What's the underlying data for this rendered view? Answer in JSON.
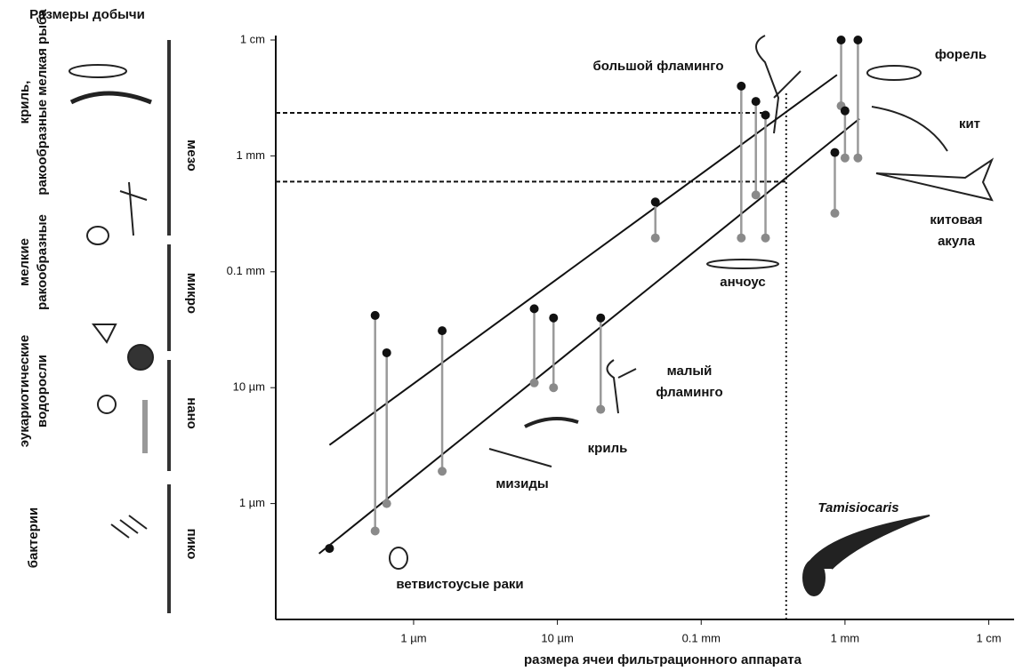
{
  "left_panel": {
    "title": "Размеры добычи",
    "prey_groups": [
      [
        "криль,",
        "ракообразные мелкая рыба"
      ],
      [
        "мелкие",
        "ракообразные"
      ],
      [
        "эукариотические",
        "водоросли"
      ],
      [
        "бактерии"
      ]
    ],
    "size_classes": [
      "мезо",
      "микро",
      "нано",
      "пико"
    ]
  },
  "chart_data": {
    "type": "range",
    "xlabel": "размера ячеи фильтрационного аппарата",
    "log_x": true,
    "log_y": true,
    "xlim": [
      0.11,
      15000
    ],
    "ylim": [
      0.1,
      10000
    ],
    "xticks": [
      {
        "value": 1,
        "label": "1 µm"
      },
      {
        "value": 10,
        "label": "10 µm"
      },
      {
        "value": 100,
        "label": "0.1 mm"
      },
      {
        "value": 1000,
        "label": "1 mm"
      },
      {
        "value": 10000,
        "label": "1 cm"
      }
    ],
    "yticks": [
      {
        "value": 1,
        "label": "1 µm"
      },
      {
        "value": 10,
        "label": "10 µm"
      },
      {
        "value": 100,
        "label": "0.1 mm"
      },
      {
        "value": 1000,
        "label": "1 mm"
      },
      {
        "value": 10000,
        "label": "1 cm"
      }
    ],
    "ranges": {
      "x": [
        0.26,
        0.54,
        0.65,
        1.58,
        6.9,
        9.4,
        20,
        48,
        190,
        240,
        280,
        850,
        940,
        1000,
        1230
      ],
      "top": [
        0.41,
        42,
        20,
        31,
        48,
        40,
        40,
        400,
        4000,
        2950,
        2250,
        1070,
        10000,
        2450,
        10000
      ],
      "bottom": [
        0.41,
        0.58,
        1.0,
        1.9,
        11,
        10,
        6.5,
        196,
        196,
        460,
        196,
        320,
        2700,
        960,
        960
      ],
      "top_color": "#111111",
      "bottom_color": "#8a8a8a",
      "line_color": "#9a9a9a"
    },
    "fit_lines": [
      {
        "x": [
          0.26,
          880
        ],
        "y": [
          3.2,
          5000
        ]
      },
      {
        "x": [
          0.22,
          1260
        ],
        "y": [
          0.37,
          2090
        ]
      }
    ],
    "hlines": [
      {
        "y": 2350,
        "x_end": 280
      },
      {
        "y": 600,
        "x_end": 390
      }
    ],
    "vline": {
      "x": 390
    },
    "annotations": [
      [
        "большой фламинго"
      ],
      [
        "форель"
      ],
      [
        "кит"
      ],
      [
        "китовая",
        "акула"
      ],
      [
        "анчоус"
      ],
      [
        "малый",
        "фламинго"
      ],
      [
        "криль"
      ],
      [
        "мизиды"
      ],
      [
        "ветвистоусые раки"
      ],
      [
        "Tamisiocaris"
      ]
    ]
  }
}
